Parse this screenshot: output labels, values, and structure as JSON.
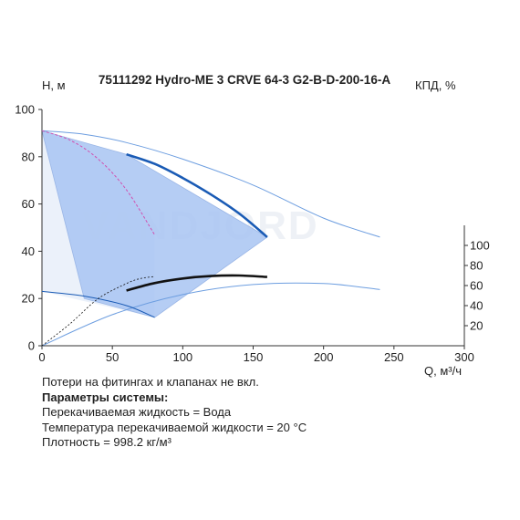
{
  "watermark": "VANDJORD",
  "notes": {
    "line1": "Потери на фитингах и клапанах не вкл.",
    "line2": "Параметры системы:",
    "line3": "Перекачиваемая жидкость = Вода",
    "line4": "Температура перекачиваемой жидкости = 20 °C",
    "line5": "Плотность = 998.2 кг/м³"
  },
  "colors": {
    "area": "#a8c4f2",
    "area_outline": "#9ab6e6",
    "head_curve": "#1a5bb5",
    "thin_curve": "#6d9ee0",
    "eff_curve": "#111111",
    "magenta": "#d04fb0",
    "light_area": "#e3ebf8"
  },
  "chart_data": {
    "type": "line",
    "title": "75111292 Hydro-ME 3 CRVE 64-3 G2-B-D-200-16-A",
    "xlabel": "Q, м³/ч",
    "ylabel": "H, м",
    "y2label": "КПД, %",
    "xlim": [
      0,
      300
    ],
    "ylim": [
      0,
      100
    ],
    "y2lim": [
      0,
      120
    ],
    "xticks": [
      "0",
      "50",
      "100",
      "150",
      "200",
      "250",
      "300"
    ],
    "yticks": [
      "0",
      "20",
      "40",
      "60",
      "80",
      "100"
    ],
    "y2ticks": [
      "20",
      "40",
      "60",
      "80",
      "100"
    ],
    "series": [
      {
        "role": "head_max_thin",
        "x": [
          0,
          30,
          60,
          100,
          150,
          200,
          240
        ],
        "y": [
          91,
          89.5,
          86,
          79,
          68,
          54,
          46
        ]
      },
      {
        "role": "head_nominal",
        "x": [
          60,
          80,
          100,
          120,
          140,
          160
        ],
        "y": [
          81,
          77,
          71,
          64,
          56,
          46
        ]
      },
      {
        "role": "head_min",
        "x": [
          0,
          30,
          60,
          80
        ],
        "y": [
          23,
          21,
          17,
          12
        ]
      },
      {
        "role": "magenta_limit",
        "x": [
          0,
          20,
          40,
          60,
          80
        ],
        "y": [
          91,
          87,
          79,
          66,
          47
        ]
      },
      {
        "role": "efficiency_nominal",
        "x": [
          60,
          80,
          100,
          120,
          140,
          160
        ],
        "y2": [
          55,
          62.5,
          67,
          69.5,
          70,
          68.5
        ]
      },
      {
        "role": "efficiency_max_thin",
        "x": [
          0,
          50,
          100,
          150,
          200,
          240
        ],
        "y2": [
          0,
          31,
          51,
          61,
          62,
          56
        ]
      },
      {
        "role": "efficiency_min",
        "x": [
          0,
          20,
          40,
          60,
          70,
          80
        ],
        "y2": [
          0,
          22,
          47,
          62,
          67,
          69
        ]
      }
    ],
    "operating_area": {
      "x": [
        0,
        60,
        160,
        80,
        30,
        0
      ],
      "y": [
        91,
        81,
        46,
        12,
        20,
        91
      ]
    }
  }
}
